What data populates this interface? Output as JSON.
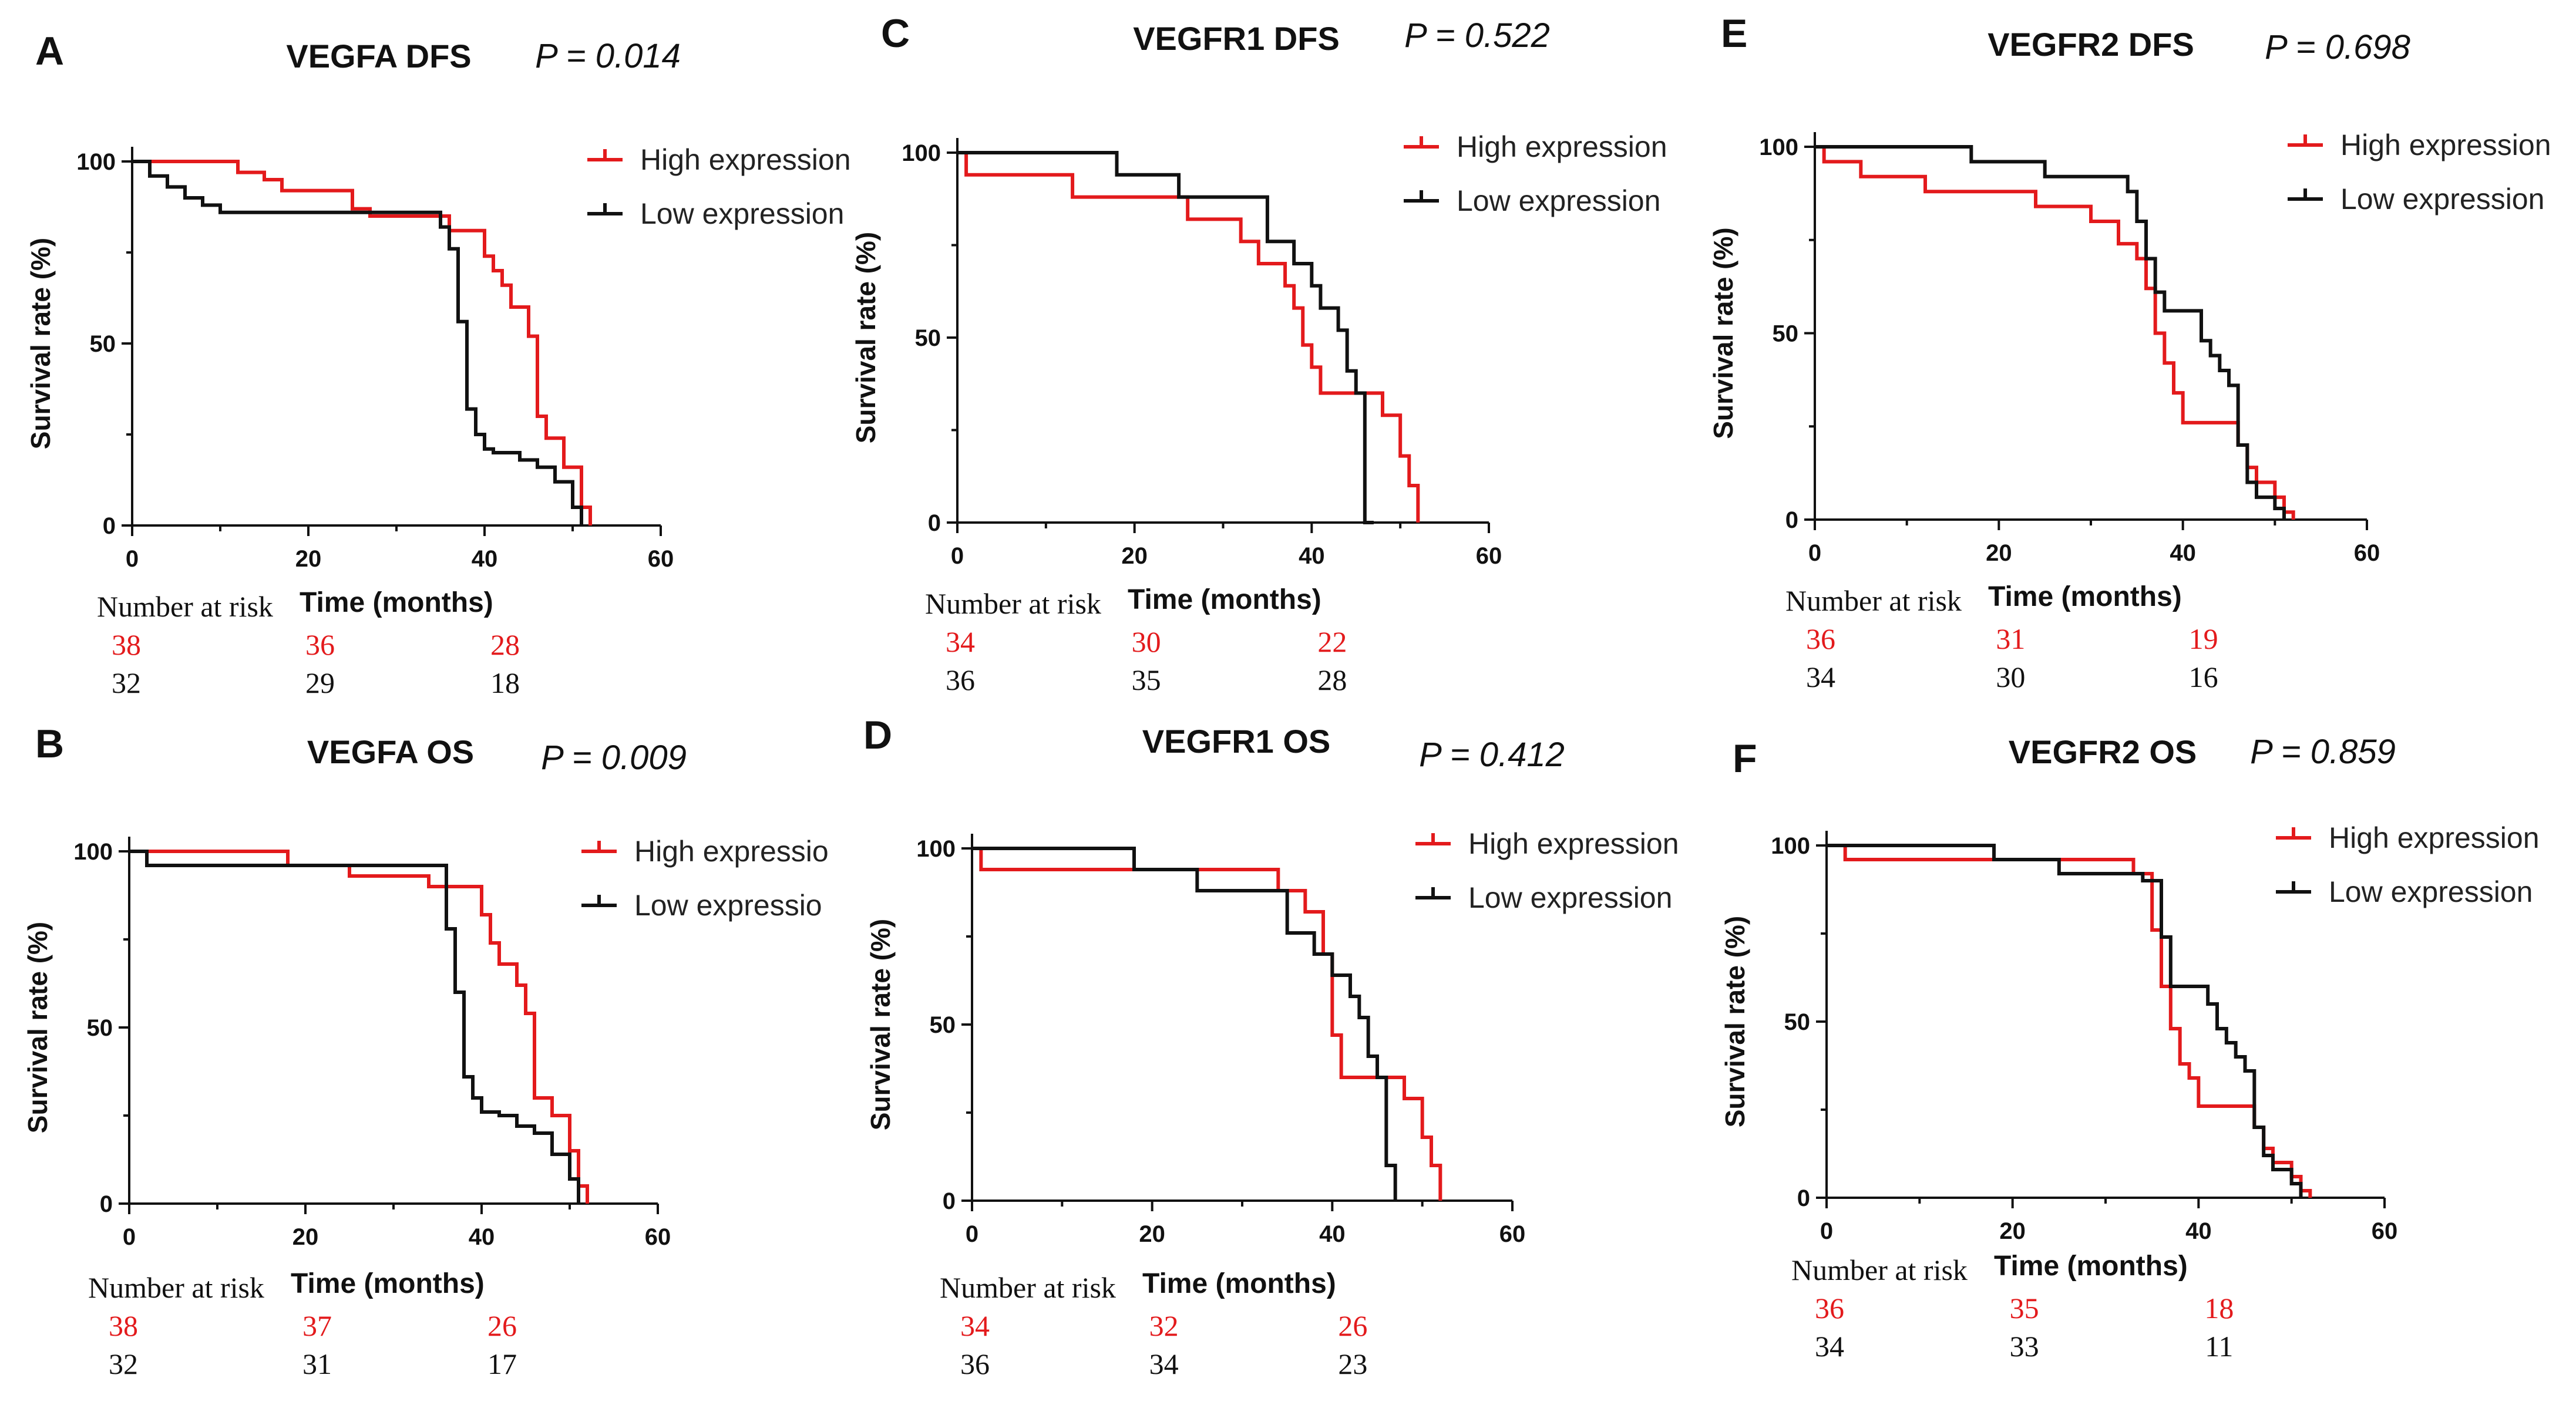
{
  "figure": {
    "high_color": "#e31a1c",
    "low_color": "#111111",
    "axis_color": "#111111"
  },
  "chart_data": [
    {
      "type": "line",
      "panel_letter": "A",
      "title": "VEGFA DFS",
      "p_value": "P = 0.014",
      "xlabel": "Time (months)",
      "ylabel": "Survival rate (%)",
      "xlim": [
        0,
        60
      ],
      "ylim": [
        0,
        100
      ],
      "xticks": [
        0,
        20,
        40,
        60
      ],
      "yticks": [
        0,
        50,
        100
      ],
      "legend_position": "top-right",
      "risk_label": "Number at risk",
      "risk_times": [
        0,
        20,
        40
      ],
      "series": [
        {
          "name": "High expression",
          "color": "#e31a1c",
          "risk": [
            38,
            36,
            28
          ],
          "x": [
            0,
            12,
            15,
            17,
            20,
            25,
            27,
            36,
            40,
            41,
            42,
            43,
            45,
            46,
            47,
            49,
            51,
            52
          ],
          "y": [
            100,
            97,
            95,
            92,
            92,
            87,
            85,
            81,
            74,
            70,
            66,
            60,
            52,
            30,
            24,
            16,
            5,
            0
          ]
        },
        {
          "name": "Low expression",
          "color": "#111111",
          "risk": [
            32,
            29,
            18
          ],
          "x": [
            0,
            2,
            4,
            6,
            8,
            10,
            35,
            36,
            37,
            38,
            39,
            40,
            41,
            44,
            46,
            48,
            50,
            51
          ],
          "y": [
            100,
            96,
            93,
            90,
            88,
            86,
            82,
            76,
            56,
            32,
            25,
            21,
            20,
            18,
            16,
            12,
            5,
            0
          ]
        }
      ]
    },
    {
      "type": "line",
      "panel_letter": "B",
      "title": "VEGFA OS",
      "p_value": "P = 0.009",
      "xlabel": "Time (months)",
      "ylabel": "Survival rate (%)",
      "xlim": [
        0,
        60
      ],
      "ylim": [
        0,
        100
      ],
      "xticks": [
        0,
        20,
        40,
        60
      ],
      "yticks": [
        0,
        50,
        100
      ],
      "legend_position": "top-right",
      "risk_label": "Number at risk",
      "risk_times": [
        0,
        20,
        40
      ],
      "series": [
        {
          "name": "High expressio",
          "color": "#e31a1c",
          "risk": [
            38,
            37,
            26
          ],
          "x": [
            0,
            18,
            25,
            34,
            40,
            41,
            42,
            44,
            45,
            46,
            48,
            50,
            51,
            52
          ],
          "y": [
            100,
            96,
            93,
            90,
            82,
            74,
            68,
            62,
            54,
            30,
            25,
            15,
            5,
            0
          ]
        },
        {
          "name": "Low expressio",
          "color": "#111111",
          "risk": [
            32,
            31,
            17
          ],
          "x": [
            0,
            2,
            35,
            36,
            37,
            38,
            39,
            40,
            42,
            44,
            46,
            48,
            50,
            51
          ],
          "y": [
            100,
            96,
            96,
            78,
            60,
            36,
            30,
            26,
            25,
            22,
            20,
            14,
            7,
            0
          ]
        }
      ]
    },
    {
      "type": "line",
      "panel_letter": "C",
      "title": "VEGFR1 DFS",
      "p_value": "P = 0.522",
      "xlabel": "Time (months)",
      "ylabel": "Survival rate (%)",
      "xlim": [
        0,
        60
      ],
      "ylim": [
        0,
        100
      ],
      "xticks": [
        0,
        20,
        40,
        60
      ],
      "yticks": [
        0,
        50,
        100
      ],
      "legend_position": "top-right",
      "risk_label": "Number at risk",
      "risk_times": [
        0,
        20,
        40
      ],
      "series": [
        {
          "name": "High expression",
          "color": "#e31a1c",
          "risk": [
            34,
            30,
            22
          ],
          "x": [
            0,
            1,
            13,
            26,
            32,
            34,
            37,
            38,
            39,
            40,
            41,
            48,
            50,
            51,
            52
          ],
          "y": [
            100,
            94,
            88,
            82,
            76,
            70,
            64,
            58,
            48,
            42,
            35,
            29,
            18,
            10,
            0
          ]
        },
        {
          "name": "Low expression",
          "color": "#111111",
          "risk": [
            36,
            35,
            28
          ],
          "x": [
            0,
            18,
            25,
            35,
            38,
            40,
            41,
            43,
            44,
            45,
            46,
            47
          ],
          "y": [
            100,
            94,
            88,
            76,
            70,
            64,
            58,
            52,
            41,
            35,
            0,
            0
          ]
        }
      ]
    },
    {
      "type": "line",
      "panel_letter": "D",
      "title": "VEGFR1 OS",
      "p_value": "P = 0.412",
      "xlabel": "Time (months)",
      "ylabel": "Survival rate (%)",
      "xlim": [
        0,
        60
      ],
      "ylim": [
        0,
        100
      ],
      "xticks": [
        0,
        20,
        40,
        60
      ],
      "yticks": [
        0,
        50,
        100
      ],
      "legend_position": "top-right",
      "risk_label": "Number at risk",
      "risk_times": [
        0,
        20,
        40
      ],
      "series": [
        {
          "name": "High expression",
          "color": "#e31a1c",
          "risk": [
            34,
            32,
            26
          ],
          "x": [
            0,
            1,
            34,
            37,
            39,
            40,
            41,
            48,
            50,
            51,
            52
          ],
          "y": [
            100,
            94,
            88,
            82,
            70,
            47,
            35,
            29,
            18,
            10,
            0
          ]
        },
        {
          "name": "Low expression",
          "color": "#111111",
          "risk": [
            36,
            34,
            23
          ],
          "x": [
            0,
            18,
            25,
            35,
            38,
            40,
            42,
            43,
            44,
            45,
            46,
            47
          ],
          "y": [
            100,
            94,
            88,
            76,
            70,
            64,
            58,
            52,
            41,
            35,
            10,
            0
          ]
        }
      ]
    },
    {
      "type": "line",
      "panel_letter": "E",
      "title": "VEGFR2 DFS",
      "p_value": "P = 0.698",
      "xlabel": "Time (months)",
      "ylabel": "Survival rate (%)",
      "xlim": [
        0,
        60
      ],
      "ylim": [
        0,
        100
      ],
      "xticks": [
        0,
        20,
        40,
        60
      ],
      "yticks": [
        0,
        50,
        100
      ],
      "legend_position": "top-right",
      "risk_label": "Number at risk",
      "risk_times": [
        0,
        20,
        40
      ],
      "series": [
        {
          "name": "High expression",
          "color": "#e31a1c",
          "risk": [
            36,
            31,
            19
          ],
          "x": [
            0,
            1,
            5,
            12,
            24,
            30,
            33,
            35,
            36,
            37,
            38,
            39,
            40,
            46,
            47,
            48,
            50,
            51,
            52
          ],
          "y": [
            100,
            96,
            92,
            88,
            84,
            80,
            74,
            70,
            62,
            50,
            42,
            34,
            26,
            20,
            14,
            10,
            6,
            2,
            0
          ]
        },
        {
          "name": "Low expression",
          "color": "#111111",
          "risk": [
            34,
            30,
            16
          ],
          "x": [
            0,
            17,
            25,
            34,
            35,
            36,
            37,
            38,
            41,
            42,
            43,
            44,
            45,
            46,
            47,
            48,
            50,
            51
          ],
          "y": [
            100,
            96,
            92,
            88,
            80,
            70,
            61,
            56,
            56,
            48,
            44,
            40,
            36,
            20,
            10,
            6,
            3,
            0
          ]
        }
      ]
    },
    {
      "type": "line",
      "panel_letter": "F",
      "title": "VEGFR2 OS",
      "p_value": "P = 0.859",
      "xlabel": "Time (months)",
      "ylabel": "Survival rate (%)",
      "xlim": [
        0,
        60
      ],
      "ylim": [
        0,
        100
      ],
      "xticks": [
        0,
        20,
        40,
        60
      ],
      "yticks": [
        0,
        50,
        100
      ],
      "legend_position": "top-right",
      "risk_label": "Number at risk",
      "risk_times": [
        0,
        20,
        40
      ],
      "series": [
        {
          "name": "High expression",
          "color": "#e31a1c",
          "risk": [
            36,
            35,
            18
          ],
          "x": [
            0,
            2,
            33,
            35,
            36,
            37,
            38,
            39,
            40,
            46,
            47,
            48,
            50,
            51,
            52
          ],
          "y": [
            100,
            96,
            92,
            76,
            60,
            48,
            38,
            34,
            26,
            20,
            14,
            10,
            6,
            2,
            0
          ]
        },
        {
          "name": "Low expression",
          "color": "#111111",
          "risk": [
            34,
            33,
            11
          ],
          "x": [
            0,
            18,
            25,
            34,
            36,
            37,
            41,
            42,
            43,
            44,
            45,
            46,
            47,
            48,
            50,
            51
          ],
          "y": [
            100,
            96,
            92,
            90,
            74,
            60,
            55,
            48,
            44,
            40,
            36,
            20,
            12,
            8,
            4,
            0
          ]
        }
      ]
    }
  ]
}
